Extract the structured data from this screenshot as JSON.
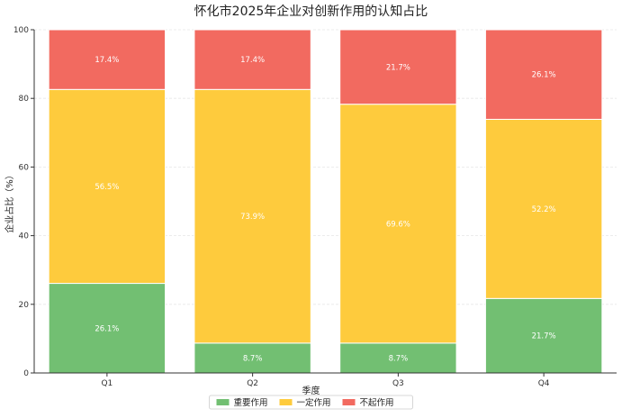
{
  "chart_data": {
    "type": "bar",
    "stacked": true,
    "title": "怀化市2025年企业对创新作用的认知占比",
    "xlabel": "季度",
    "ylabel": "企业占比（%）",
    "categories": [
      "Q1",
      "Q2",
      "Q3",
      "Q4"
    ],
    "ylim": [
      0,
      100
    ],
    "yticks": [
      0,
      20,
      40,
      60,
      80,
      100
    ],
    "grid": true,
    "legend_position": "bottom-center",
    "series": [
      {
        "name": "重要作用",
        "color": "#72bf72",
        "values": [
          26.1,
          8.7,
          8.7,
          21.7
        ],
        "labels": [
          "26.1%",
          "8.7%",
          "8.7%",
          "21.7%"
        ]
      },
      {
        "name": "一定作用",
        "color": "#fecb3d",
        "values": [
          56.5,
          73.9,
          69.6,
          52.2
        ],
        "labels": [
          "56.5%",
          "73.9%",
          "69.6%",
          "52.2%"
        ]
      },
      {
        "name": "不起作用",
        "color": "#f26a60",
        "values": [
          17.4,
          17.4,
          21.7,
          26.1
        ],
        "labels": [
          "17.4%",
          "17.4%",
          "21.7%",
          "26.1%"
        ]
      }
    ]
  }
}
